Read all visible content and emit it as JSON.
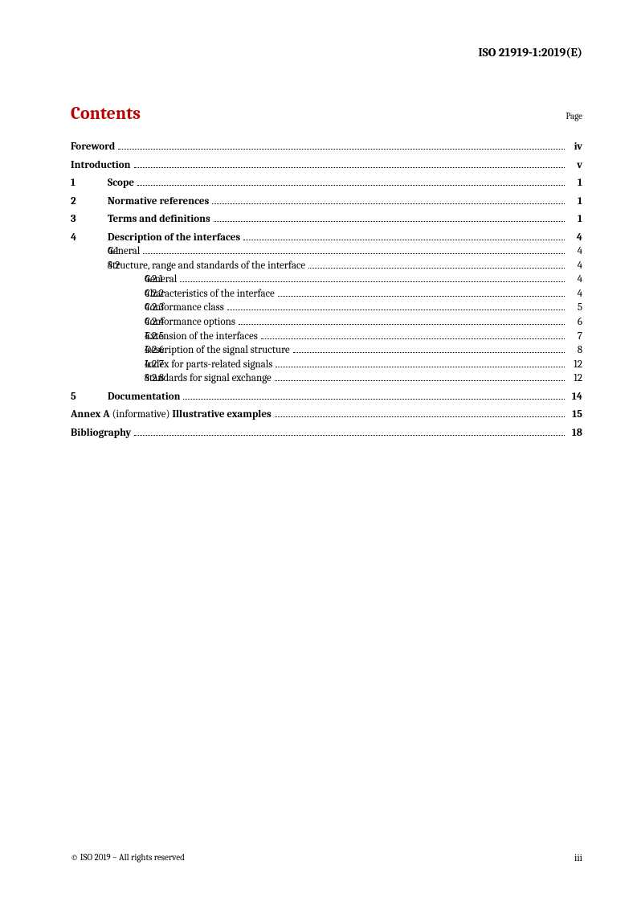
{
  "header": {
    "doc_id": "ISO 21919-1:2019(E)"
  },
  "title": "Contents",
  "page_label": "Page",
  "colors": {
    "title": "#bf0000",
    "text": "#000000",
    "background": "#ffffff"
  },
  "toc": [
    {
      "level": 0,
      "num": "",
      "title": "Foreword",
      "page": "iv",
      "bold": true,
      "top": true
    },
    {
      "level": 0,
      "num": "",
      "title": "Introduction",
      "page": "v",
      "bold": true,
      "top": true
    },
    {
      "level": 1,
      "num": "1",
      "title": "Scope",
      "page": "1",
      "bold": true,
      "top": true
    },
    {
      "level": 1,
      "num": "2",
      "title": "Normative references",
      "page": "1",
      "bold": true,
      "top": true
    },
    {
      "level": 1,
      "num": "3",
      "title": "Terms and definitions",
      "page": "1",
      "bold": true,
      "top": true
    },
    {
      "level": 1,
      "num": "4",
      "title": "Description of the interfaces",
      "page": "4",
      "bold": true,
      "top": true
    },
    {
      "level": 2,
      "num": "4.1",
      "title": "General",
      "page": "4",
      "bold": false,
      "top": false
    },
    {
      "level": 2,
      "num": "4.2",
      "title": "Structure, range and standards of the interface",
      "page": "4",
      "bold": false,
      "top": false
    },
    {
      "level": 3,
      "num": "4.2.1",
      "title": "General",
      "page": "4",
      "bold": false,
      "top": false
    },
    {
      "level": 3,
      "num": "4.2.2",
      "title": "Characteristics of the interface",
      "page": "4",
      "bold": false,
      "top": false
    },
    {
      "level": 3,
      "num": "4.2.3",
      "title": "Conformance class",
      "page": "5",
      "bold": false,
      "top": false
    },
    {
      "level": 3,
      "num": "4.2.4",
      "title": "Conformance options",
      "page": "6",
      "bold": false,
      "top": false
    },
    {
      "level": 3,
      "num": "4.2.5",
      "title": "Extension of the interfaces",
      "page": "7",
      "bold": false,
      "top": false
    },
    {
      "level": 3,
      "num": "4.2.6",
      "title": "Description of the signal structure",
      "page": "8",
      "bold": false,
      "top": false
    },
    {
      "level": 3,
      "num": "4.2.7",
      "title": "Index for parts-related signals",
      "page": "12",
      "bold": false,
      "top": false
    },
    {
      "level": 3,
      "num": "4.2.8",
      "title": "Standards for signal exchange",
      "page": "12",
      "bold": false,
      "top": false
    },
    {
      "level": 1,
      "num": "5",
      "title": "Documentation",
      "page": "14",
      "bold": true,
      "top": true
    }
  ],
  "annex": {
    "prefix": "Annex A",
    "note": " (informative) ",
    "title": "Illustrative examples",
    "page": "15"
  },
  "biblio": {
    "title": "Bibliography",
    "page": "18"
  },
  "footer": {
    "copyright": "© ISO 2019 – All rights reserved",
    "page_number": "iii"
  }
}
